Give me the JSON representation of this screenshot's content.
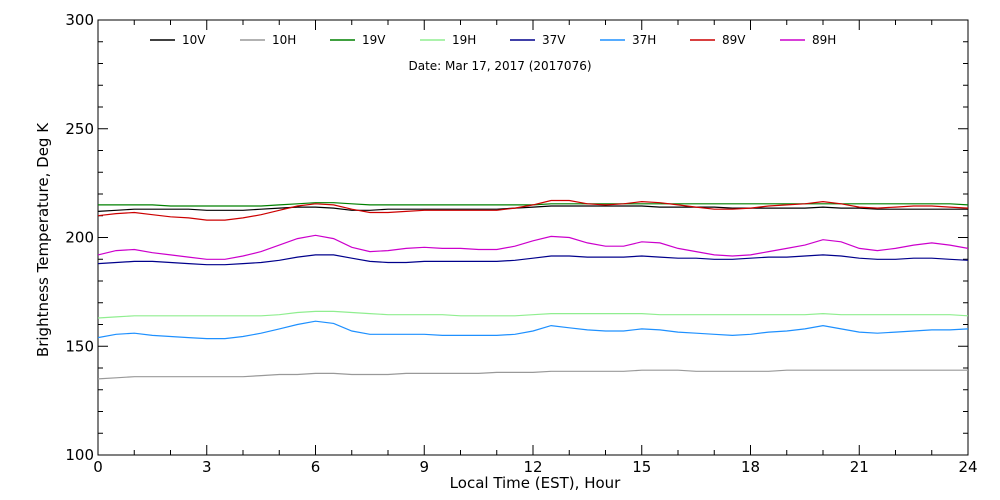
{
  "chart_data": {
    "type": "line",
    "subtitle": "Date: Mar 17, 2017 (2017076)",
    "xlabel": "Local Time (EST), Hour",
    "ylabel": "Brightness Temperature, Deg K",
    "xlim": [
      0,
      24
    ],
    "ylim": [
      100,
      300
    ],
    "x_ticks": [
      0,
      3,
      6,
      9,
      12,
      15,
      18,
      21,
      24
    ],
    "y_ticks": [
      100,
      150,
      200,
      250,
      300
    ],
    "grid": false,
    "legend_position": "top",
    "x": [
      0,
      0.5,
      1,
      1.5,
      2,
      2.5,
      3,
      3.5,
      4,
      4.5,
      5,
      5.5,
      6,
      6.5,
      7,
      7.5,
      8,
      8.5,
      9,
      9.5,
      10,
      10.5,
      11,
      11.5,
      12,
      12.5,
      13,
      13.5,
      14,
      14.5,
      15,
      15.5,
      16,
      16.5,
      17,
      17.5,
      18,
      18.5,
      19,
      19.5,
      20,
      20.5,
      21,
      21.5,
      22,
      22.5,
      23,
      23.5,
      24
    ],
    "series": [
      {
        "name": "10V",
        "color": "#000000",
        "values": [
          212,
          212.5,
          213,
          213,
          213,
          213,
          212.5,
          212.5,
          212.5,
          213,
          213.5,
          214,
          214,
          213.5,
          212.5,
          212.5,
          213,
          213,
          213,
          213,
          213,
          213,
          213,
          213.5,
          214,
          214.5,
          214.5,
          214.5,
          214.5,
          214.5,
          214.5,
          214,
          214,
          214,
          214,
          213.5,
          213.5,
          213.5,
          213.5,
          213.5,
          214,
          213.5,
          213.5,
          213,
          213,
          213,
          213,
          213,
          213
        ]
      },
      {
        "name": "10H",
        "color": "#999999",
        "values": [
          135,
          135.5,
          136,
          136,
          136,
          136,
          136,
          136,
          136,
          136.5,
          137,
          137,
          137.5,
          137.5,
          137,
          137,
          137,
          137.5,
          137.5,
          137.5,
          137.5,
          137.5,
          138,
          138,
          138,
          138.5,
          138.5,
          138.5,
          138.5,
          138.5,
          139,
          139,
          139,
          138.5,
          138.5,
          138.5,
          138.5,
          138.5,
          139,
          139,
          139,
          139,
          139,
          139,
          139,
          139,
          139,
          139,
          139
        ]
      },
      {
        "name": "19V",
        "color": "#008000",
        "values": [
          215,
          215,
          215,
          215,
          214.5,
          214.5,
          214.5,
          214.5,
          214.5,
          214.5,
          215,
          215.5,
          216,
          216,
          215.5,
          215,
          215,
          215,
          215,
          215,
          215,
          215,
          215,
          215,
          215,
          215.5,
          215.5,
          215.5,
          215.5,
          215.5,
          215.5,
          215.5,
          215.5,
          215.5,
          215.5,
          215.5,
          215.5,
          215.5,
          215.5,
          215.5,
          215.5,
          215.5,
          215.5,
          215.5,
          215.5,
          215.5,
          215.5,
          215.5,
          215
        ]
      },
      {
        "name": "19H",
        "color": "#90ee90",
        "values": [
          163,
          163.5,
          164,
          164,
          164,
          164,
          164,
          164,
          164,
          164,
          164.5,
          165.5,
          166,
          166,
          165.5,
          165,
          164.5,
          164.5,
          164.5,
          164.5,
          164,
          164,
          164,
          164,
          164.5,
          165,
          165,
          165,
          165,
          165,
          165,
          164.5,
          164.5,
          164.5,
          164.5,
          164.5,
          164.5,
          164.5,
          164.5,
          164.5,
          165,
          164.5,
          164.5,
          164.5,
          164.5,
          164.5,
          164.5,
          164.5,
          164
        ]
      },
      {
        "name": "37V",
        "color": "#00008b",
        "values": [
          188,
          188.5,
          189,
          189,
          188.5,
          188,
          187.5,
          187.5,
          188,
          188.5,
          189.5,
          191,
          192,
          192,
          190.5,
          189,
          188.5,
          188.5,
          189,
          189,
          189,
          189,
          189,
          189.5,
          190.5,
          191.5,
          191.5,
          191,
          191,
          191,
          191.5,
          191,
          190.5,
          190.5,
          190,
          190,
          190.5,
          191,
          191,
          191.5,
          192,
          191.5,
          190.5,
          190,
          190,
          190.5,
          190.5,
          190,
          189.5
        ]
      },
      {
        "name": "37H",
        "color": "#1e90ff",
        "values": [
          154,
          155.5,
          156,
          155,
          154.5,
          154,
          153.5,
          153.5,
          154.5,
          156,
          158,
          160,
          161.5,
          160.5,
          157,
          155.5,
          155.5,
          155.5,
          155.5,
          155,
          155,
          155,
          155,
          155.5,
          157,
          159.5,
          158.5,
          157.5,
          157,
          157,
          158,
          157.5,
          156.5,
          156,
          155.5,
          155,
          155.5,
          156.5,
          157,
          158,
          159.5,
          158,
          156.5,
          156,
          156.5,
          157,
          157.5,
          157.5,
          158
        ]
      },
      {
        "name": "89V",
        "color": "#cc0000",
        "values": [
          210,
          211,
          211.5,
          210.5,
          209.5,
          209,
          208,
          208,
          209,
          210.5,
          212.5,
          214.5,
          215.5,
          215,
          213,
          211.5,
          211.5,
          212,
          212.5,
          212.5,
          212.5,
          212.5,
          212.5,
          213.5,
          215,
          217,
          217,
          215.5,
          215,
          215.5,
          216.5,
          216,
          215,
          214,
          213,
          213,
          213.5,
          214.5,
          215,
          215.5,
          216.5,
          215.5,
          214,
          213.5,
          214,
          214.5,
          214.5,
          214,
          213.5
        ]
      },
      {
        "name": "89H",
        "color": "#cc00cc",
        "values": [
          192,
          194,
          194.5,
          193,
          192,
          191,
          190,
          190,
          191.5,
          193.5,
          196.5,
          199.5,
          201,
          199.5,
          195.5,
          193.5,
          194,
          195,
          195.5,
          195,
          195,
          194.5,
          194.5,
          196,
          198.5,
          200.5,
          200,
          197.5,
          196,
          196,
          198,
          197.5,
          195,
          193.5,
          192,
          191.5,
          192,
          193.5,
          195,
          196.5,
          199,
          198,
          195,
          194,
          195,
          196.5,
          197.5,
          196.5,
          195
        ]
      }
    ]
  }
}
